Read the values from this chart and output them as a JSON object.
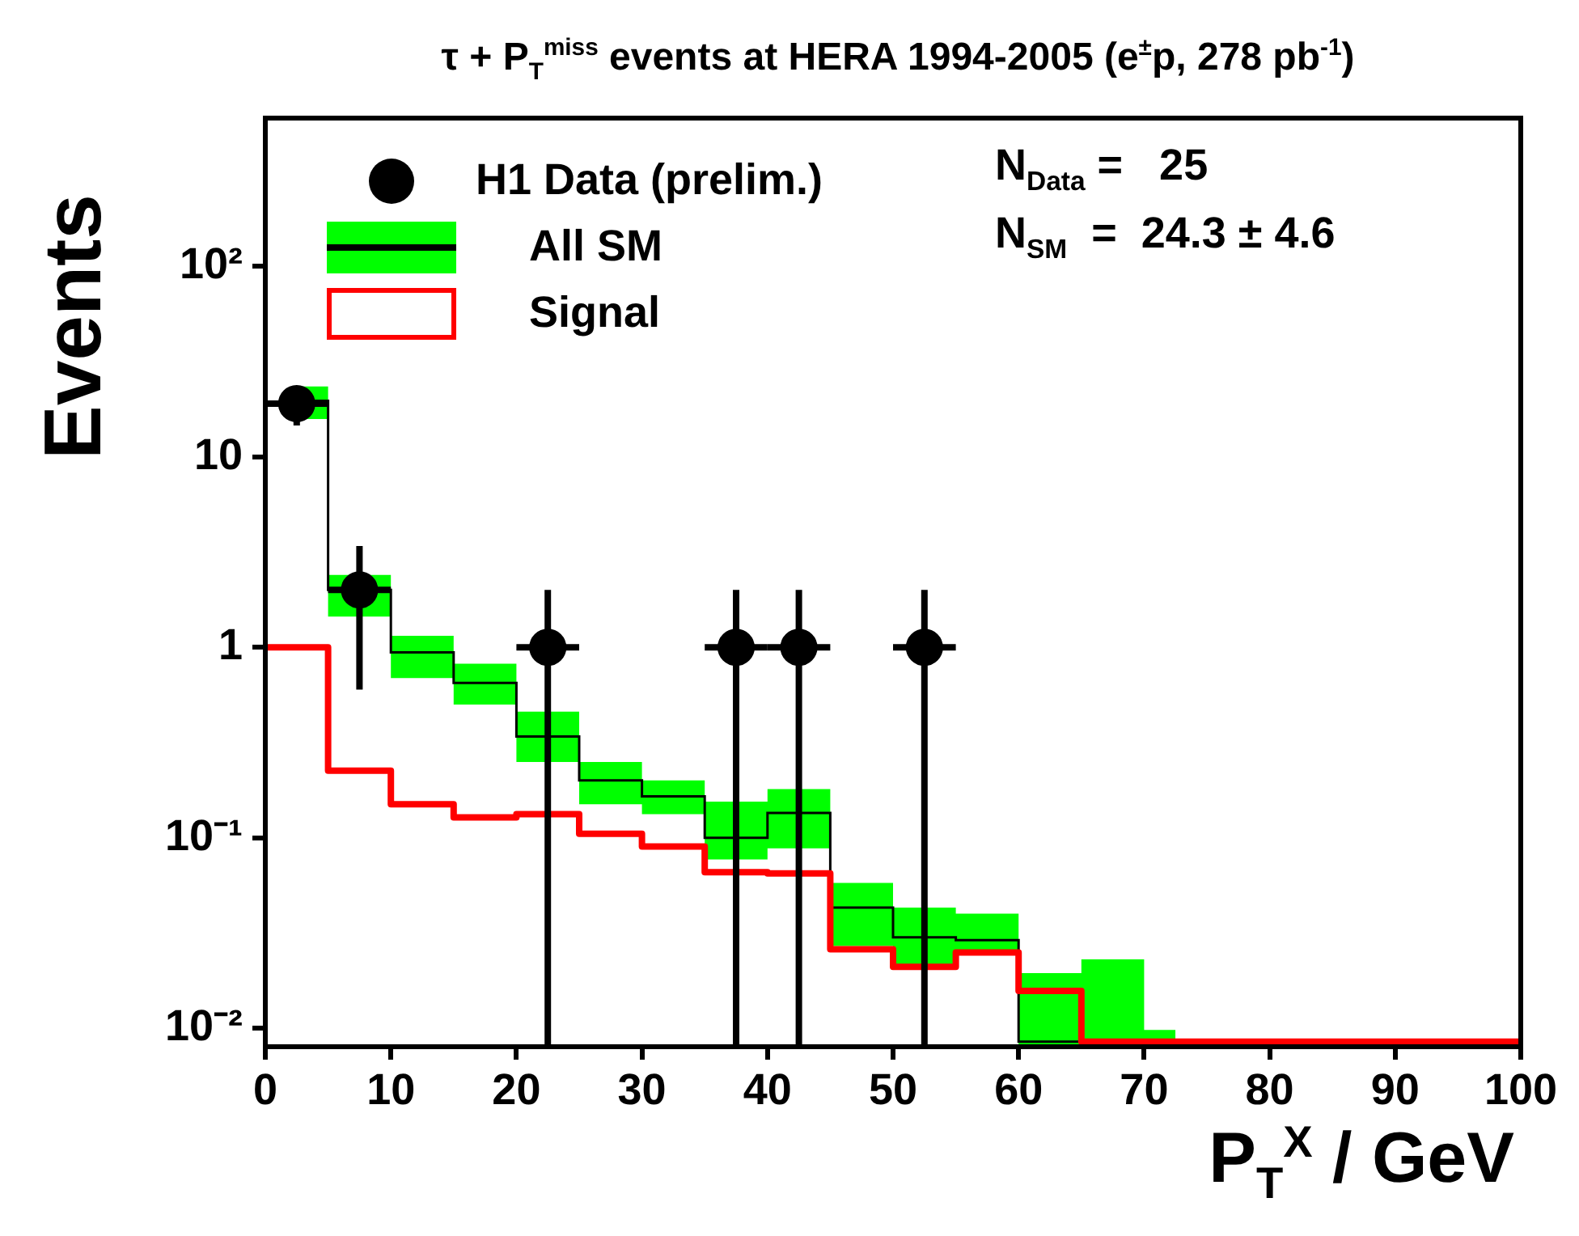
{
  "chart_data": {
    "type": "histogram",
    "title": "τ + P$_{T}$$^{miss}$ events at HERA 1994-2005 (e$^{±}$p, 278 pb$^{-1}$)",
    "xlabel": "P$_{T}$$^{X}$ / GeV",
    "ylabel": "Events",
    "bins": [
      0,
      5,
      10,
      15,
      20,
      25,
      30,
      35,
      40,
      45,
      50,
      55,
      60,
      65,
      70,
      75,
      80,
      85,
      90,
      95,
      100
    ],
    "series": [
      {
        "name": "H1 Data (prelim.)",
        "type": "scatter",
        "color": "#000000",
        "x": [
          2.5,
          7.5,
          22.5,
          37.5,
          42.5,
          52.5
        ],
        "values": [
          19,
          2,
          1,
          1,
          1,
          1
        ],
        "errors": [
          4.4,
          [
            1.4,
            1.4
          ],
          [
            0.992,
            1.0
          ],
          [
            0.992,
            1.0
          ],
          [
            0.992,
            1.0
          ],
          [
            0.992,
            1.0
          ]
        ],
        "xerrors": [
          2.5,
          2.5,
          2.5,
          2.5,
          2.5,
          2.5
        ]
      },
      {
        "name": "All SM",
        "type": "step",
        "color": "#000000",
        "x": [
          2.5,
          7.5,
          12.5,
          17.5,
          22.5,
          27.5,
          32.5,
          37.5,
          42.5,
          47.5,
          52.5,
          57.5,
          62.5,
          67.5,
          72.5,
          77.5,
          82.5,
          87.5,
          92.5,
          97.5
        ],
        "values": [
          19.7,
          2.0,
          0.94,
          0.65,
          0.34,
          0.2,
          0.165,
          0.1,
          0.135,
          0.043,
          0.03,
          0.029,
          0.0085,
          0.0085,
          0.0085,
          0.0085,
          0.0085,
          0.0085,
          0.0085,
          0.0085
        ],
        "lower": [
          15.8,
          1.45,
          0.69,
          0.5,
          0.25,
          0.15,
          0.133,
          0.077,
          0.088,
          0.027,
          0.0205,
          0.025,
          0.008,
          0.008,
          0.008,
          null,
          null,
          null,
          null,
          null
        ],
        "upper": [
          23.4,
          2.4,
          1.15,
          0.82,
          0.46,
          0.25,
          0.2,
          0.155,
          0.18,
          0.058,
          0.043,
          0.04,
          0.0195,
          0.023,
          0.0098,
          null,
          null,
          null,
          null,
          null
        ]
      },
      {
        "name": "Signal",
        "type": "histogram",
        "color": "#ff0000",
        "values": [
          1.0,
          0.225,
          0.15,
          0.128,
          0.133,
          0.105,
          0.09,
          0.066,
          0.065,
          0.026,
          0.021,
          0.025,
          0.0157,
          0.0085,
          0.0085,
          0.0085,
          0.0085,
          0.0085,
          0.0085,
          0.0085
        ]
      }
    ],
    "annotations": [
      "N$_{Data}$ =   25",
      "N$_{SM}$  =  24.3 ± 4.6"
    ],
    "xlim": [
      0,
      100
    ],
    "xticks": [
      0,
      10,
      20,
      30,
      40,
      50,
      60,
      70,
      80,
      90,
      100
    ],
    "ylim": [
      0.008,
      600
    ],
    "yticks": [
      {
        "value": 0.01,
        "label": "10⁻²"
      },
      {
        "value": 0.1,
        "label": "10⁻¹"
      },
      1,
      10,
      {
        "value": 100,
        "label": "10²"
      }
    ],
    "log": "y",
    "legend": "top left"
  }
}
